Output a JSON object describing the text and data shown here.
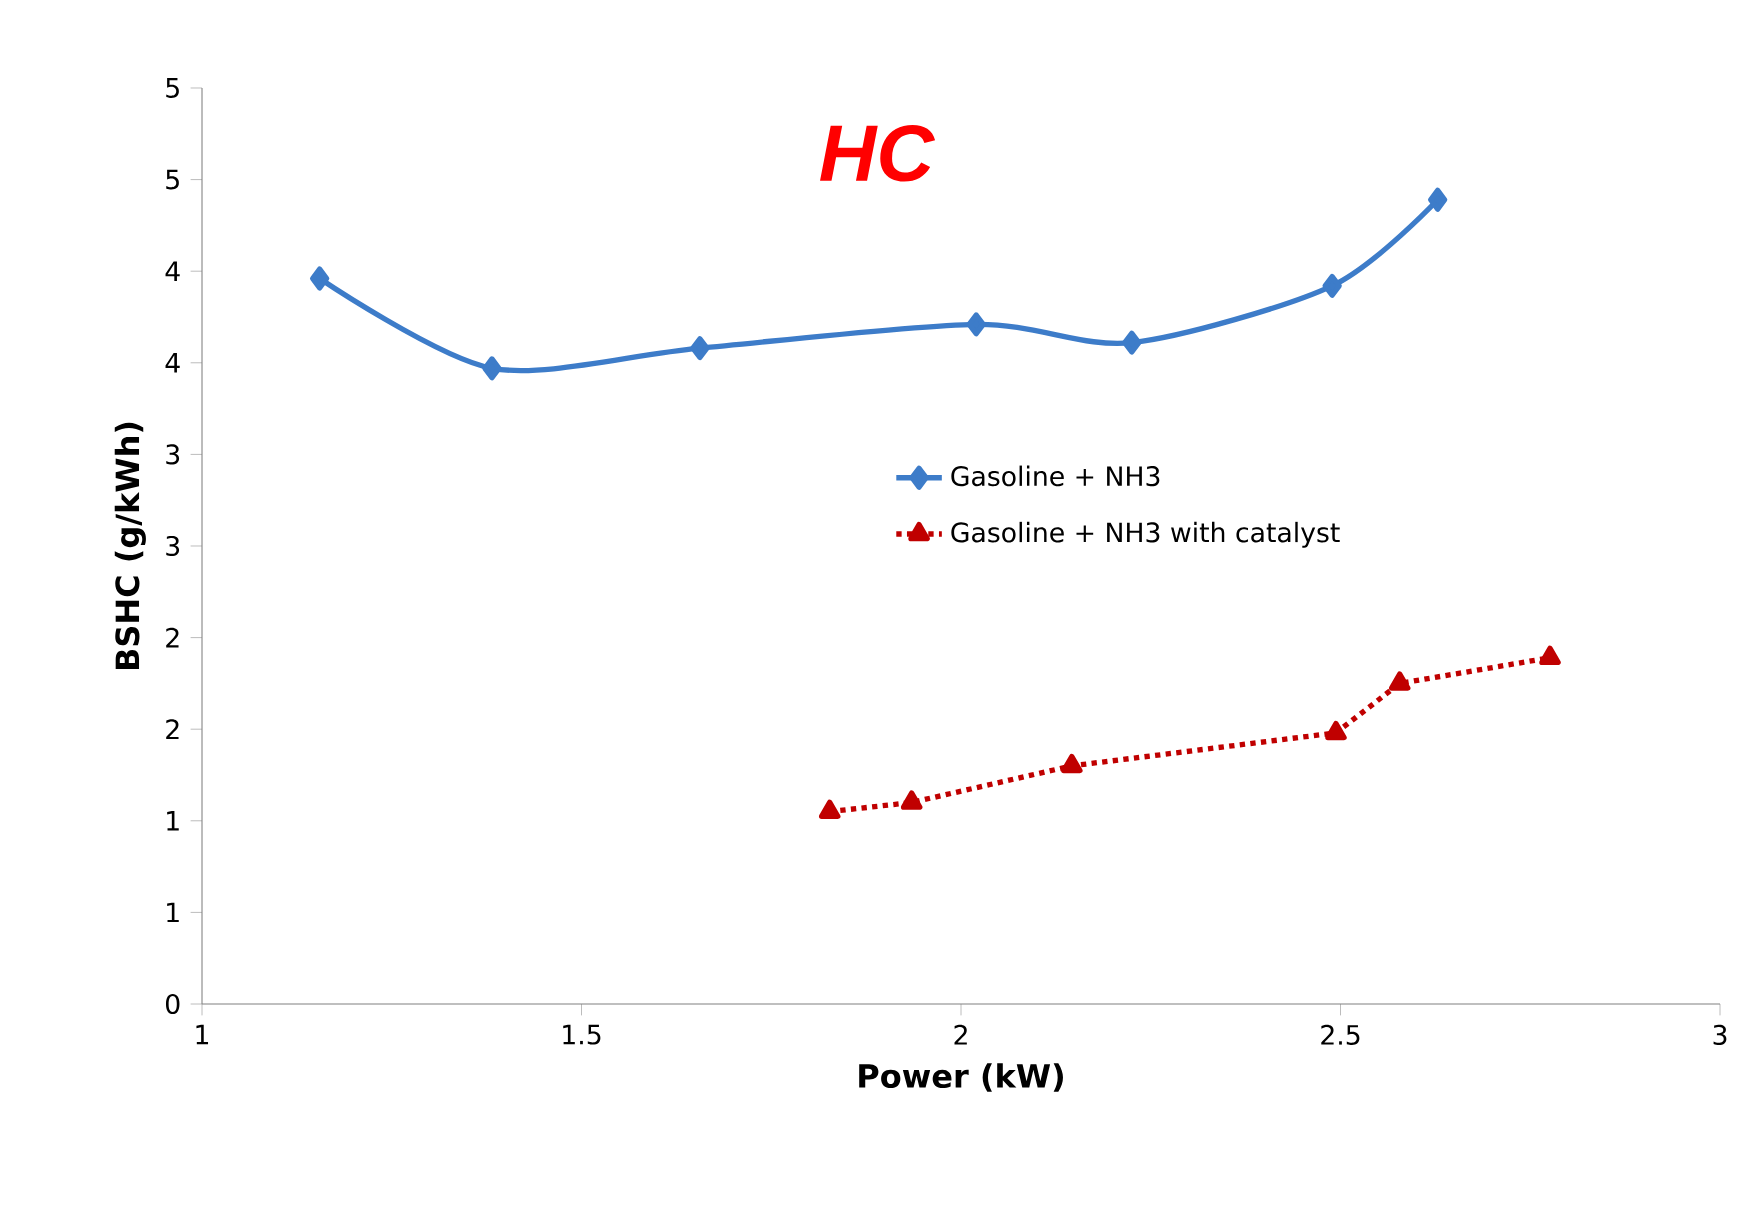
{
  "chart_data": {
    "type": "line",
    "title": "HC",
    "xlabel": "Power (kW)",
    "ylabel": "BSHC (g/kWh)",
    "xlim": [
      1,
      3
    ],
    "xticks": [
      1,
      1.5,
      2,
      2.5,
      3
    ],
    "ylim": [
      0,
      5
    ],
    "yticks": [
      0,
      {
        "value": 0.5,
        "label": "1"
      },
      1,
      {
        "value": 1.5,
        "label": "2"
      },
      2,
      {
        "value": 2.5,
        "label": "3"
      },
      3,
      {
        "value": 3.5,
        "label": "4"
      },
      4,
      {
        "value": 4.5,
        "label": "5"
      },
      5
    ],
    "legend": "right",
    "grid": false,
    "series": [
      {
        "name": "Gasoline + NH3",
        "color": "#3d7cc9",
        "marker": "diamond",
        "line_style": "solid",
        "x": [
          1.155,
          1.382,
          1.656,
          2.02,
          2.225,
          2.489,
          2.628
        ],
        "values": [
          3.96,
          3.47,
          3.58,
          3.71,
          3.61,
          3.92,
          4.39
        ]
      },
      {
        "name": "Gasoline + NH3 with catalyst",
        "color": "#c00000",
        "marker": "triangle",
        "line_style": "dotted",
        "x": [
          1.827,
          1.935,
          2.146,
          2.494,
          2.578,
          2.776
        ],
        "values": [
          1.05,
          1.1,
          1.3,
          1.48,
          1.75,
          1.89
        ]
      }
    ]
  }
}
